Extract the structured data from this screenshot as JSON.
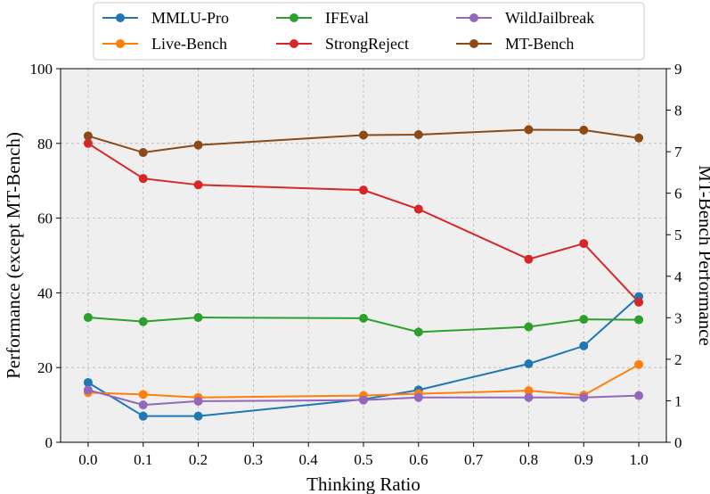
{
  "chart_data": {
    "type": "line",
    "xlabel": "Thinking Ratio",
    "ylabel_left": "Performance (except MT-Bench)",
    "ylabel_right": "MT-Bench Performance",
    "xlim": [
      -0.05,
      1.05
    ],
    "ylim_left": [
      0,
      100
    ],
    "ylim_right": [
      0,
      9
    ],
    "x_ticks": [
      "0.0",
      "0.1",
      "0.2",
      "0.3",
      "0.4",
      "0.5",
      "0.6",
      "0.7",
      "0.8",
      "0.9",
      "1.0"
    ],
    "y_ticks_left": [
      "0",
      "20",
      "40",
      "60",
      "80",
      "100"
    ],
    "y_ticks_right": [
      "0",
      "1",
      "2",
      "3",
      "4",
      "5",
      "6",
      "7",
      "8",
      "9"
    ],
    "grid": true,
    "legend_position": "top",
    "series": [
      {
        "name": "MMLU-Pro",
        "color": "#1f77b4",
        "axis": "left",
        "x": [
          0.0,
          0.1,
          0.2,
          0.5,
          0.6,
          0.8,
          0.9,
          1.0
        ],
        "values": [
          16.0,
          7.0,
          7.0,
          11.5,
          14.0,
          21.0,
          25.8,
          39.0
        ]
      },
      {
        "name": "Live-Bench",
        "color": "#ff7f0e",
        "axis": "left",
        "x": [
          0.0,
          0.1,
          0.2,
          0.5,
          0.6,
          0.8,
          0.9,
          1.0
        ],
        "values": [
          13.3,
          12.8,
          12.0,
          12.5,
          13.0,
          13.8,
          12.6,
          20.8
        ]
      },
      {
        "name": "IFEval",
        "color": "#2ca02c",
        "axis": "left",
        "x": [
          0.0,
          0.1,
          0.2,
          0.5,
          0.6,
          0.8,
          0.9,
          1.0
        ],
        "values": [
          33.4,
          32.3,
          33.4,
          33.2,
          29.5,
          30.9,
          32.9,
          32.8
        ]
      },
      {
        "name": "StrongReject",
        "color": "#d62728",
        "axis": "left",
        "x": [
          0.0,
          0.1,
          0.2,
          0.5,
          0.6,
          0.8,
          0.9,
          1.0
        ],
        "values": [
          80.0,
          70.6,
          68.9,
          67.5,
          62.4,
          49.0,
          53.2,
          37.5
        ]
      },
      {
        "name": "WildJailbreak",
        "color": "#9467bd",
        "axis": "left",
        "x": [
          0.0,
          0.1,
          0.2,
          0.5,
          0.6,
          0.8,
          0.9,
          1.0
        ],
        "values": [
          14.0,
          10.0,
          11.0,
          11.3,
          12.0,
          12.0,
          12.0,
          12.5
        ]
      },
      {
        "name": "MT-Bench",
        "color": "#8c4a16",
        "axis": "right",
        "x": [
          0.0,
          0.1,
          0.2,
          0.5,
          0.6,
          0.8,
          0.9,
          1.0
        ],
        "values": [
          7.38,
          6.98,
          7.16,
          7.4,
          7.41,
          7.53,
          7.52,
          7.33
        ]
      }
    ]
  }
}
